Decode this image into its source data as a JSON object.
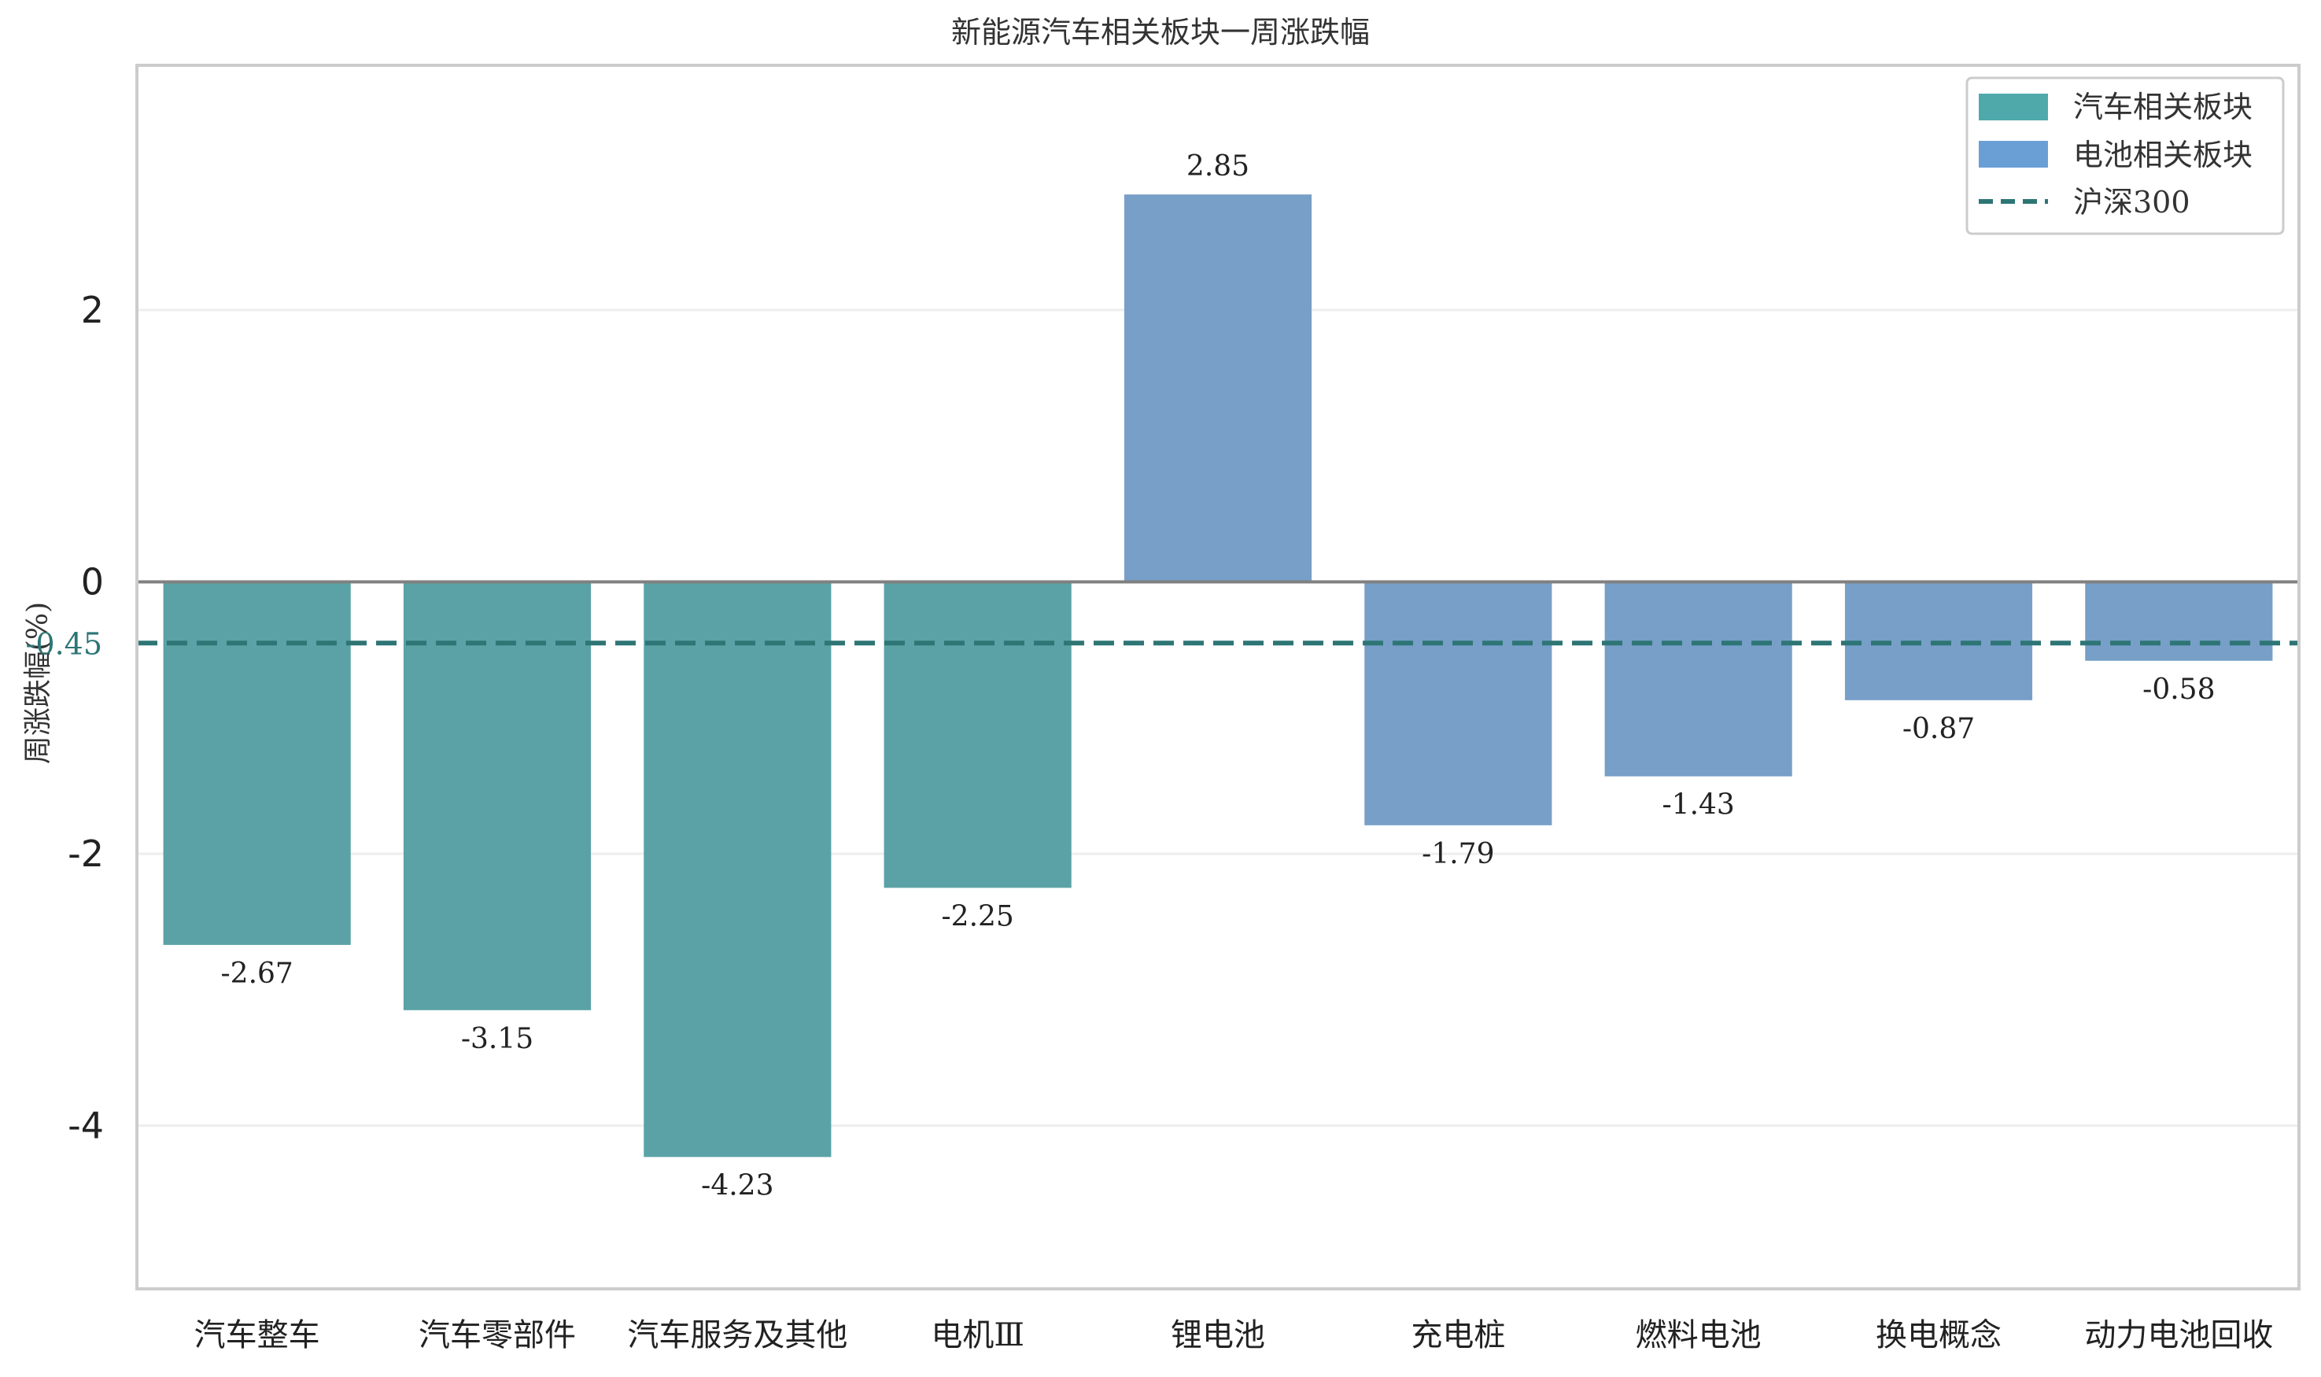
{
  "chart_data": {
    "type": "bar",
    "title": "新能源汽车相关板块一周涨跌幅",
    "xlabel": "",
    "ylabel": "周涨跌幅(%)",
    "ylim": [
      -5.2,
      3.8
    ],
    "yticks": [
      "2",
      "0",
      "-2",
      "-4"
    ],
    "ytick_values": [
      2,
      0,
      -2,
      -4
    ],
    "grid": true,
    "legend_position": "top-right",
    "categories": [
      "汽车整车",
      "汽车零部件",
      "汽车服务及其他",
      "电机Ⅲ",
      "锂电池",
      "充电桩",
      "燃料电池",
      "换电概念",
      "动力电池回收"
    ],
    "values": [
      -2.67,
      -3.15,
      -4.23,
      -2.25,
      2.85,
      -1.79,
      -1.43,
      -0.87,
      -0.58
    ],
    "value_labels": [
      "-2.67",
      "-3.15",
      "-4.23",
      "-2.25",
      "2.85",
      "-1.79",
      "-1.43",
      "-0.87",
      "-0.58"
    ],
    "groups": [
      "auto",
      "auto",
      "auto",
      "auto",
      "battery",
      "battery",
      "battery",
      "battery",
      "battery"
    ],
    "series": [
      {
        "name": "汽车相关板块",
        "key": "auto",
        "color": "#5aa2a5"
      },
      {
        "name": "电池相关板块",
        "key": "battery",
        "color": "#779fc8"
      }
    ],
    "reference_line": {
      "name": "沪深300",
      "value": -0.45,
      "label": "-0.45",
      "color": "#2e7575"
    },
    "legend_colors": {
      "auto": "#4fa9ab",
      "battery": "#6a9fd6"
    }
  }
}
